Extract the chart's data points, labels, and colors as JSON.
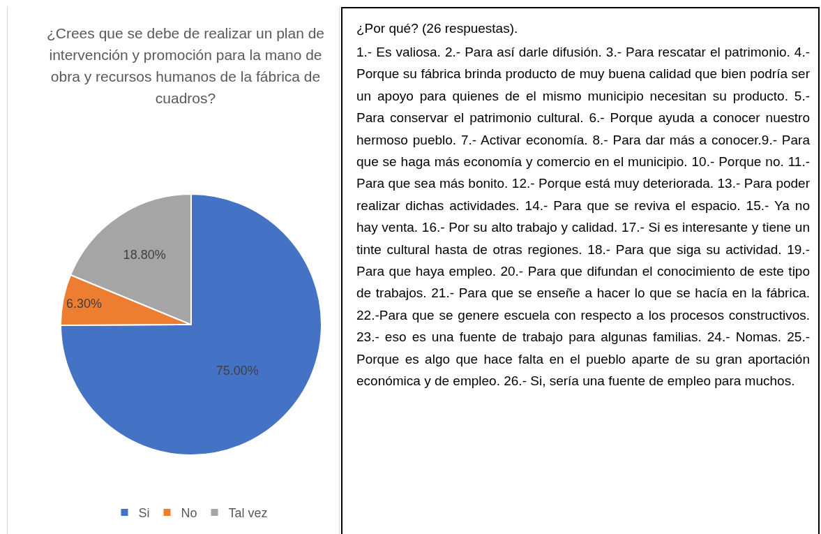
{
  "chart_data": [
    {
      "type": "pie",
      "title": "¿Crees que se debe de realizar un plan de intervención y promoción para la mano de obra y recursos humanos de la fábrica de cuadros?",
      "categories": [
        "Si",
        "No",
        "Tal vez"
      ],
      "values": [
        75,
        6.3,
        18.8
      ],
      "value_labels": [
        "75.00%",
        "6.30%",
        "18.80%"
      ],
      "colors": [
        "#4472c4",
        "#ed7d31",
        "#a5a5a5"
      ],
      "legend": "bottom"
    },
    {
      "type": "other",
      "title": "¿Por qué? (26 respuestas).",
      "annotations": [
        "1.- Es valiosa.  2.- Para así darle difusión. 3.- Para rescatar el patrimonio. 4.-Porque su fábrica brinda producto de muy buena calidad que bien podría ser un apoyo para quienes de el mismo municipio necesitan su producto. 5.- Para conservar el patrimonio cultural. 6.- Porque ayuda a conocer nuestro hermoso pueblo.  7.- Activar economía. 8.- Para dar más a conocer.9.- Para que se haga más economía y comercio en el municipio. 10.- Porque no. 11.- Para que sea más bonito. 12.- Porque está muy deteriorada. 13.- Para poder realizar dichas actividades. 14.- Para que se reviva el espacio. 15.- Ya no hay venta. 16.- Por su alto trabajo y calidad. 17.- Si es interesante y tiene un tinte cultural hasta de otras regiones. 18.- Para que siga su actividad. 19.- Para que haya empleo. 20.- Para que difundan el conocimiento de este tipo de trabajos. 21.- Para que se enseñe a hacer lo que se hacía en la fábrica. 22.-Para que se genere escuela con respecto a los procesos constructivos. 23.- eso es una fuente de trabajo para algunas familias. 24.- Nomas. 25.- Porque es algo que hace falta en el pueblo aparte de su gran aportación económica y de empleo. 26.- Si, sería una fuente de empleo para muchos."
      ]
    }
  ]
}
